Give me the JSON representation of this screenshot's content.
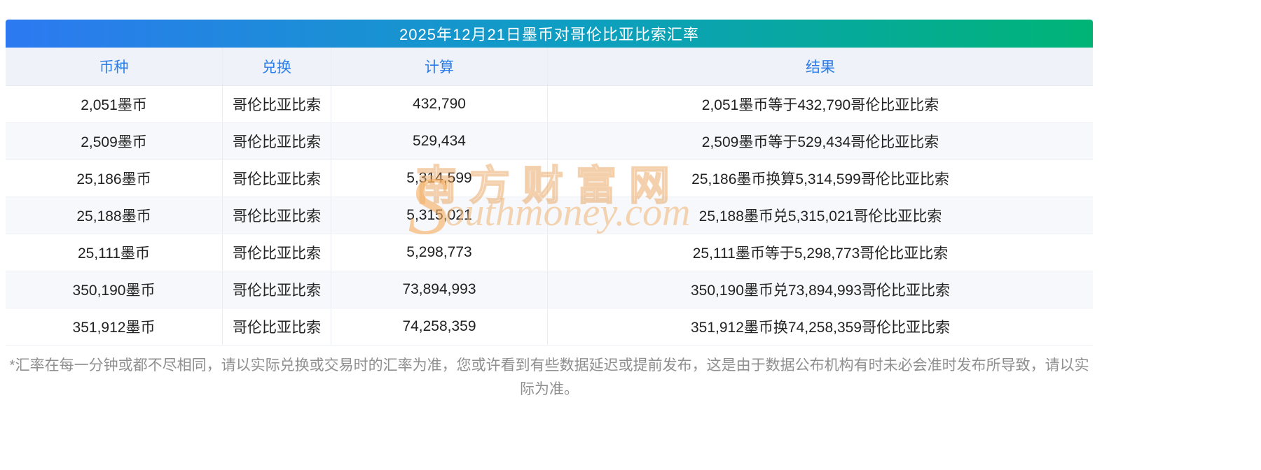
{
  "title": "2025年12月21日墨币对哥伦比亚比索汇率",
  "table": {
    "columns": [
      "币种",
      "兑换",
      "计算",
      "结果"
    ],
    "rows": [
      [
        "2,051墨币",
        "哥伦比亚比索",
        "432,790",
        "2,051墨币等于432,790哥伦比亚比索"
      ],
      [
        "2,509墨币",
        "哥伦比亚比索",
        "529,434",
        "2,509墨币等于529,434哥伦比亚比索"
      ],
      [
        "25,186墨币",
        "哥伦比亚比索",
        "5,314,599",
        "25,186墨币换算5,314,599哥伦比亚比索"
      ],
      [
        "25,188墨币",
        "哥伦比亚比索",
        "5,315,021",
        "25,188墨币兑5,315,021哥伦比亚比索"
      ],
      [
        "25,111墨币",
        "哥伦比亚比索",
        "5,298,773",
        "25,111墨币等于5,298,773哥伦比亚比索"
      ],
      [
        "350,190墨币",
        "哥伦比亚比索",
        "73,894,993",
        "350,190墨币兑73,894,993哥伦比亚比索"
      ],
      [
        "351,912墨币",
        "哥伦比亚比索",
        "74,258,359",
        "351,912墨币换74,258,359哥伦比亚比索"
      ]
    ]
  },
  "watermark": {
    "cn": "南方财富网",
    "en_s": "S",
    "en_rest": "outhmoney.com"
  },
  "footnote": "*汇率在每一分钟或都不尽相同，请以实际兑换或交易时的汇率为准，您或许看到有些数据延迟或提前发布，这是由于数据公布机构有时未必会准时发布所导致，请以实际为准。",
  "colors": {
    "banner_gradient_start": "#2d79f1",
    "banner_gradient_end": "#00b476",
    "header_text": "#2b7de9",
    "header_bg": "#eff3f9",
    "watermark_orange": "#eda45c"
  }
}
